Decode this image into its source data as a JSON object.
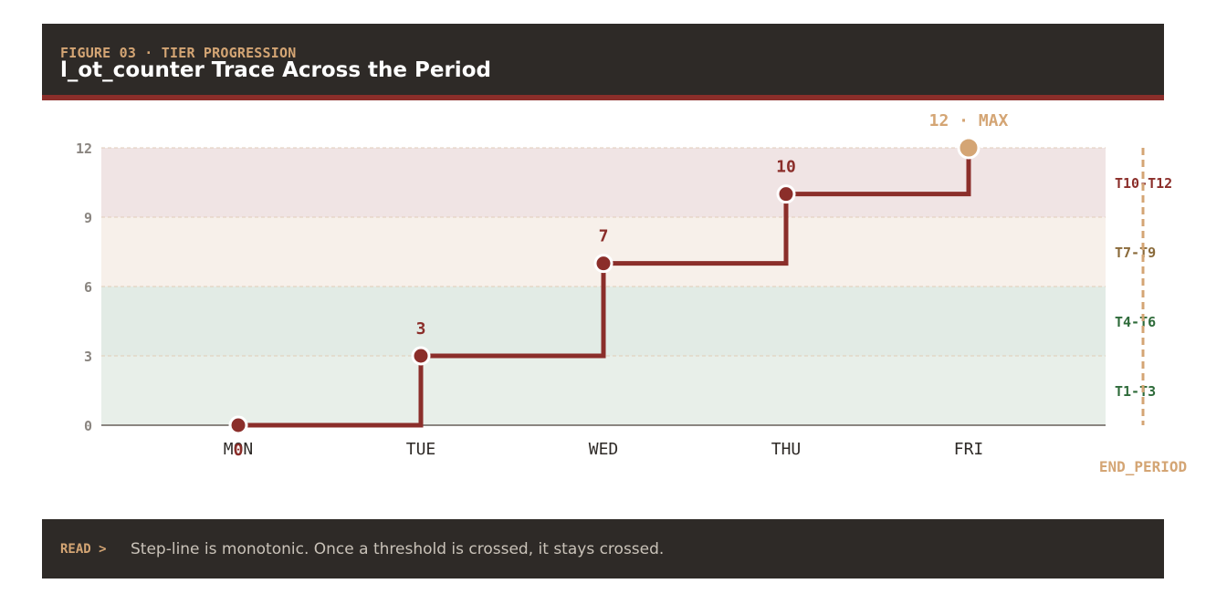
{
  "header": {
    "eyebrow": "FIGURE 03 · TIER PROGRESSION",
    "title": "l_ot_counter Trace Across the Period"
  },
  "footer": {
    "label": "READ >",
    "text": "Step-line is monotonic. Once a threshold is crossed, it stays crossed."
  },
  "chart_data": {
    "type": "line",
    "step": true,
    "categories": [
      "MON",
      "TUE",
      "WED",
      "THU",
      "FRI"
    ],
    "values": [
      0,
      3,
      7,
      10,
      12
    ],
    "data_labels": [
      "0",
      "3",
      "7",
      "10",
      "12 · MAX"
    ],
    "yticks": [
      0,
      3,
      6,
      9,
      12
    ],
    "ylim": [
      0,
      12
    ],
    "grid": true,
    "bands": [
      {
        "label": "T1-T3",
        "from": 0,
        "to": 3,
        "fill": "#e8efe9",
        "color": "#2e6b3a"
      },
      {
        "label": "T4-T6",
        "from": 3,
        "to": 6,
        "fill": "#e2ebe5",
        "color": "#2e6b3a"
      },
      {
        "label": "T7-T9",
        "from": 6,
        "to": 9,
        "fill": "#f7f0ea",
        "color": "#8a6a3a"
      },
      {
        "label": "T10-T12",
        "from": 9,
        "to": 12,
        "fill": "#f0e4e4",
        "color": "#8b2e2a"
      }
    ],
    "end_marker": {
      "label": "END_PERIOD",
      "x": 4.4
    },
    "colors": {
      "line": "#8b2e2a",
      "max_point": "#d4a574",
      "end_marker": "#d4a574",
      "grid": "#e0cdb8",
      "axis": "#8a8580",
      "tick": "#8a8580",
      "category": "#2e2a27"
    }
  }
}
